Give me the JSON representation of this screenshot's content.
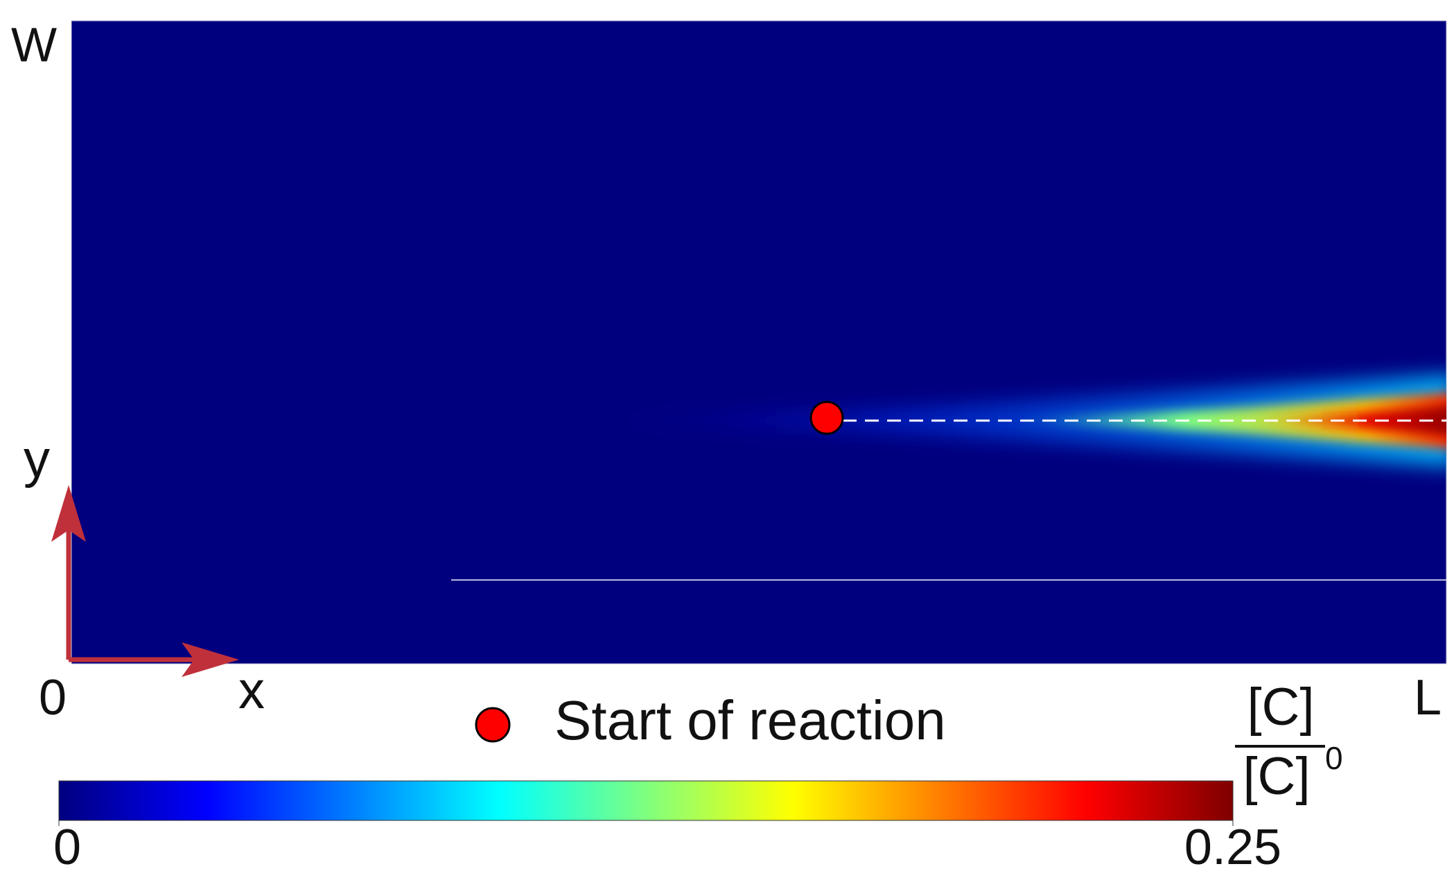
{
  "figure": {
    "labels": {
      "w": "W",
      "y": "y",
      "origin": "0",
      "x": "x",
      "l": "L"
    },
    "legend": {
      "label": "Start of reaction",
      "color": "#ff0000"
    },
    "colorbar": {
      "numerator": "[C]",
      "denominator": "[C]",
      "superscript": "0",
      "colormap": "jet",
      "lim": [
        0,
        0.25
      ],
      "ticks": [
        0,
        0.25
      ]
    }
  }
}
